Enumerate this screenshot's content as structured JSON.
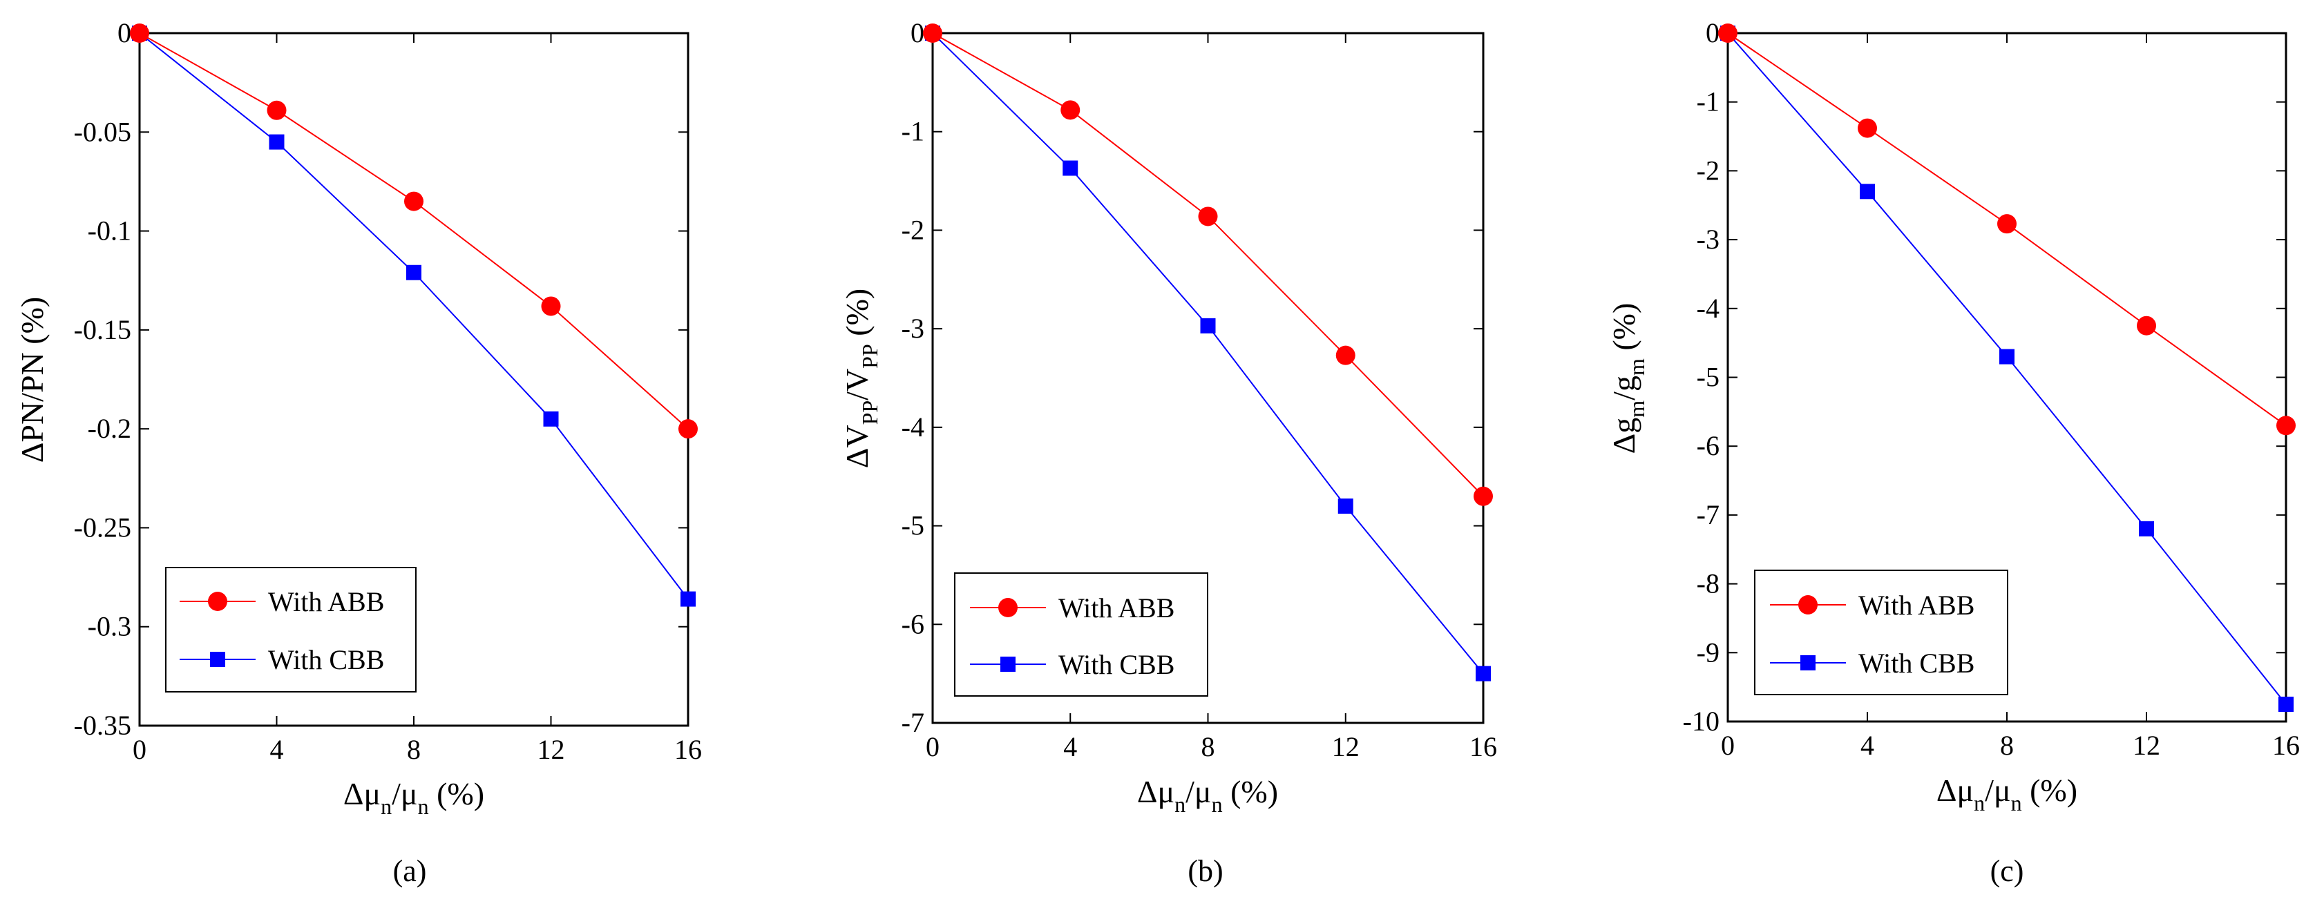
{
  "chart_data": [
    {
      "id": "a",
      "type": "line",
      "caption": "(a)",
      "xlabel": {
        "main": "Δμ",
        "sub": "n",
        "mid": "/μ",
        "sub2": "n",
        "tail": " (%)"
      },
      "ylabel": "ΔPN/PN (%)",
      "xlim": [
        0,
        16
      ],
      "ylim": [
        -0.35,
        0
      ],
      "xticks": [
        0,
        4,
        8,
        12,
        16
      ],
      "yticks": [
        0,
        -0.05,
        -0.1,
        -0.15,
        -0.2,
        -0.25,
        -0.3,
        -0.35
      ],
      "ytick_labels": [
        "0",
        "-0.05",
        "-0.1",
        "-0.15",
        "-0.2",
        "-0.25",
        "-0.3",
        "-0.35"
      ],
      "x": [
        0,
        4,
        8,
        12,
        16
      ],
      "series": [
        {
          "name": "With ABB",
          "color": "#ff0000",
          "marker": "circle",
          "values": [
            0,
            -0.039,
            -0.085,
            -0.138,
            -0.2
          ]
        },
        {
          "name": "With CBB",
          "color": "#0000ff",
          "marker": "square",
          "values": [
            0,
            -0.055,
            -0.121,
            -0.195,
            -0.286
          ]
        }
      ],
      "legend": "bottom-left"
    },
    {
      "id": "b",
      "type": "line",
      "caption": "(b)",
      "xlabel": {
        "main": "Δμ",
        "sub": "n",
        "mid": "/μ",
        "sub2": "n",
        "tail": " (%)"
      },
      "ylabel": "ΔV_PP/V_PP (%)",
      "xlim": [
        0,
        16
      ],
      "ylim": [
        -7,
        0
      ],
      "xticks": [
        0,
        4,
        8,
        12,
        16
      ],
      "yticks": [
        0,
        -1,
        -2,
        -3,
        -4,
        -5,
        -6,
        -7
      ],
      "ytick_labels": [
        "0",
        "-1",
        "-2",
        "-3",
        "-4",
        "-5",
        "-6",
        "-7"
      ],
      "x": [
        0,
        4,
        8,
        12,
        16
      ],
      "series": [
        {
          "name": "With ABB",
          "color": "#ff0000",
          "marker": "circle",
          "values": [
            0,
            -0.78,
            -1.86,
            -3.27,
            -4.7
          ]
        },
        {
          "name": "With CBB",
          "color": "#0000ff",
          "marker": "square",
          "values": [
            0,
            -1.37,
            -2.97,
            -4.8,
            -6.5
          ]
        }
      ],
      "legend": "bottom-left"
    },
    {
      "id": "c",
      "type": "line",
      "caption": "(c)",
      "xlabel": {
        "main": "Δμ",
        "sub": "n",
        "mid": "/μ",
        "sub2": "n",
        "tail": " (%)"
      },
      "ylabel": "Δg_m/g_m (%)",
      "xlim": [
        0,
        16
      ],
      "ylim": [
        -10,
        0
      ],
      "xticks": [
        0,
        4,
        8,
        12,
        16
      ],
      "yticks": [
        0,
        -1,
        -2,
        -3,
        -4,
        -5,
        -6,
        -7,
        -8,
        -9,
        -10
      ],
      "ytick_labels": [
        "0",
        "-1",
        "-2",
        "-3",
        "-4",
        "-5",
        "-6",
        "-7",
        "-8",
        "-9",
        "-10"
      ],
      "x": [
        0,
        4,
        8,
        12,
        16
      ],
      "series": [
        {
          "name": "With ABB",
          "color": "#ff0000",
          "marker": "circle",
          "values": [
            0,
            -1.38,
            -2.77,
            -4.25,
            -5.7
          ]
        },
        {
          "name": "With CBB",
          "color": "#0000ff",
          "marker": "square",
          "values": [
            0,
            -2.3,
            -4.7,
            -7.2,
            -9.75
          ]
        }
      ],
      "legend": "bottom-left"
    }
  ]
}
